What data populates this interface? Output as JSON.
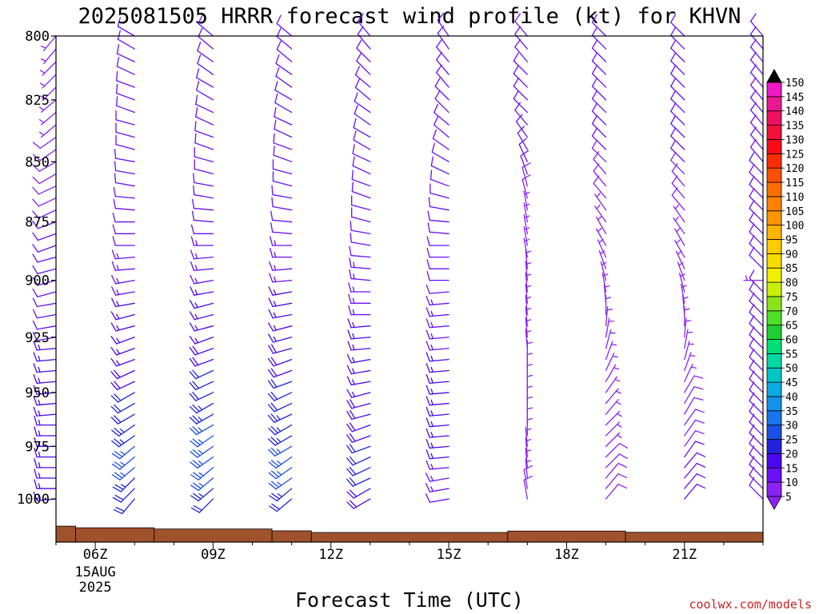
{
  "chart_data": {
    "type": "wind-barb-profile",
    "title": "2025081505 HRRR forecast wind profile (kt) for KHVN",
    "xlabel": "Forecast Time (UTC)",
    "x_ticks": [
      {
        "hour": 6,
        "label": "06Z",
        "sub1": "15AUG",
        "sub2": "2025"
      },
      {
        "hour": 9,
        "label": "09Z",
        "sub1": "",
        "sub2": ""
      },
      {
        "hour": 12,
        "label": "12Z",
        "sub1": "",
        "sub2": ""
      },
      {
        "hour": 15,
        "label": "15Z",
        "sub1": "",
        "sub2": ""
      },
      {
        "hour": 18,
        "label": "18Z",
        "sub1": "",
        "sub2": ""
      },
      {
        "hour": 21,
        "label": "21Z",
        "sub1": "",
        "sub2": ""
      }
    ],
    "xlim_hours": [
      5.0,
      23.0
    ],
    "ylim_hPa": [
      1021,
      800
    ],
    "y_ticks": [
      800,
      825,
      850,
      875,
      900,
      925,
      950,
      975,
      1000
    ],
    "y_scale": "log-pressure",
    "series_hours": [
      5,
      7,
      9,
      11,
      13,
      15,
      17,
      19,
      21,
      23
    ],
    "barb_levels": [
      1000,
      995,
      990,
      985,
      980,
      975,
      970,
      965,
      960,
      955,
      950,
      945,
      940,
      935,
      930,
      925,
      920,
      915,
      910,
      905,
      900,
      895,
      890,
      885,
      880,
      875,
      870,
      865,
      860,
      855,
      850,
      845,
      840,
      835,
      830,
      825,
      820,
      815,
      810,
      805,
      800
    ],
    "wind_profiles": [
      {
        "hour": 5,
        "dir": [
          265,
          270,
          270,
          270,
          270,
          270,
          270,
          270,
          265,
          265,
          265,
          265,
          265,
          265,
          265,
          260,
          260,
          260,
          260,
          255,
          255,
          255,
          255,
          250,
          250,
          250,
          245,
          245,
          245,
          240,
          240,
          235,
          235,
          230,
          230,
          230,
          225,
          225,
          225,
          220,
          220
        ],
        "spd": [
          15,
          15,
          15,
          15,
          15,
          15,
          15,
          15,
          15,
          15,
          15,
          15,
          15,
          15,
          15,
          12,
          12,
          12,
          12,
          12,
          12,
          10,
          10,
          10,
          10,
          10,
          10,
          8,
          8,
          8,
          8,
          8,
          8,
          6,
          6,
          6,
          6,
          6,
          5,
          5,
          5
        ]
      },
      {
        "hour": 7,
        "dir": [
          220,
          225,
          225,
          230,
          230,
          230,
          235,
          235,
          240,
          240,
          240,
          245,
          245,
          250,
          250,
          250,
          255,
          255,
          260,
          260,
          260,
          265,
          265,
          270,
          270,
          270,
          275,
          275,
          280,
          280,
          280,
          285,
          285,
          285,
          290,
          290,
          290,
          295,
          295,
          300,
          300
        ],
        "spd": [
          20,
          22,
          24,
          25,
          25,
          25,
          24,
          23,
          22,
          21,
          20,
          19,
          18,
          17,
          16,
          16,
          15,
          15,
          15,
          14,
          14,
          13,
          13,
          12,
          12,
          12,
          11,
          11,
          10,
          10,
          10,
          10,
          10,
          10,
          10,
          10,
          10,
          10,
          10,
          10,
          10
        ]
      },
      {
        "hour": 9,
        "dir": [
          225,
          230,
          230,
          230,
          235,
          235,
          235,
          240,
          240,
          240,
          245,
          245,
          245,
          250,
          250,
          250,
          255,
          255,
          255,
          260,
          260,
          265,
          265,
          270,
          270,
          275,
          275,
          280,
          280,
          285,
          285,
          290,
          290,
          295,
          295,
          300,
          300,
          305,
          305,
          310,
          310
        ],
        "spd": [
          22,
          24,
          25,
          26,
          26,
          26,
          25,
          25,
          24,
          23,
          22,
          21,
          20,
          19,
          18,
          17,
          16,
          16,
          15,
          15,
          14,
          14,
          13,
          13,
          12,
          12,
          12,
          11,
          11,
          11,
          10,
          10,
          10,
          10,
          10,
          10,
          10,
          10,
          10,
          10,
          10
        ]
      },
      {
        "hour": 11,
        "dir": [
          230,
          230,
          235,
          235,
          235,
          240,
          240,
          240,
          245,
          245,
          245,
          250,
          250,
          250,
          255,
          255,
          255,
          260,
          260,
          260,
          265,
          265,
          270,
          270,
          275,
          275,
          280,
          280,
          285,
          285,
          290,
          290,
          295,
          295,
          300,
          300,
          305,
          305,
          310,
          310,
          310
        ],
        "spd": [
          22,
          24,
          25,
          25,
          25,
          25,
          24,
          24,
          23,
          22,
          21,
          20,
          19,
          18,
          18,
          17,
          16,
          16,
          15,
          15,
          14,
          14,
          13,
          13,
          12,
          12,
          12,
          11,
          11,
          11,
          10,
          10,
          10,
          10,
          10,
          10,
          10,
          10,
          10,
          10,
          10
        ]
      },
      {
        "hour": 13,
        "dir": [
          240,
          240,
          245,
          245,
          245,
          250,
          250,
          250,
          255,
          255,
          255,
          260,
          260,
          260,
          265,
          265,
          265,
          270,
          270,
          270,
          275,
          275,
          275,
          280,
          280,
          285,
          285,
          290,
          290,
          295,
          295,
          300,
          300,
          305,
          305,
          310,
          310,
          315,
          315,
          320,
          320
        ],
        "spd": [
          18,
          19,
          20,
          20,
          20,
          20,
          19,
          19,
          18,
          18,
          17,
          17,
          16,
          16,
          15,
          15,
          15,
          14,
          14,
          14,
          13,
          13,
          12,
          12,
          12,
          11,
          11,
          11,
          10,
          10,
          10,
          10,
          10,
          10,
          10,
          10,
          10,
          10,
          10,
          10,
          10
        ]
      },
      {
        "hour": 15,
        "dir": [
          260,
          260,
          260,
          265,
          265,
          265,
          265,
          265,
          265,
          265,
          265,
          265,
          265,
          265,
          265,
          265,
          265,
          265,
          265,
          265,
          270,
          270,
          270,
          270,
          275,
          275,
          280,
          285,
          290,
          295,
          300,
          305,
          310,
          310,
          315,
          315,
          320,
          320,
          320,
          325,
          325
        ],
        "spd": [
          12,
          13,
          14,
          14,
          15,
          15,
          15,
          15,
          15,
          15,
          15,
          15,
          15,
          15,
          14,
          14,
          14,
          13,
          13,
          12,
          12,
          12,
          11,
          11,
          10,
          10,
          10,
          10,
          10,
          10,
          10,
          10,
          10,
          10,
          10,
          10,
          10,
          10,
          10,
          10,
          10
        ]
      },
      {
        "hour": 17,
        "dir": [
          350,
          350,
          355,
          355,
          355,
          355,
          0,
          0,
          0,
          0,
          0,
          0,
          0,
          0,
          355,
          355,
          355,
          355,
          355,
          355,
          355,
          355,
          350,
          350,
          350,
          350,
          350,
          345,
          345,
          340,
          335,
          330,
          325,
          320,
          315,
          315,
          315,
          315,
          320,
          320,
          320
        ],
        "spd": [
          8,
          8,
          7,
          7,
          6,
          6,
          5,
          5,
          5,
          5,
          5,
          5,
          5,
          5,
          5,
          5,
          5,
          5,
          5,
          5,
          5,
          5,
          5,
          5,
          6,
          6,
          7,
          8,
          9,
          10,
          10,
          10,
          10,
          10,
          10,
          10,
          10,
          10,
          10,
          10,
          10
        ]
      },
      {
        "hour": 19,
        "dir": [
          40,
          40,
          40,
          45,
          45,
          45,
          45,
          45,
          40,
          40,
          35,
          30,
          25,
          20,
          15,
          10,
          5,
          0,
          355,
          350,
          345,
          340,
          335,
          330,
          330,
          325,
          325,
          320,
          320,
          320,
          315,
          315,
          315,
          315,
          315,
          315,
          315,
          315,
          315,
          315,
          315
        ],
        "spd": [
          8,
          8,
          8,
          8,
          8,
          7,
          7,
          7,
          6,
          6,
          6,
          5,
          5,
          5,
          5,
          5,
          5,
          5,
          5,
          5,
          5,
          5,
          5,
          6,
          6,
          7,
          7,
          8,
          8,
          9,
          9,
          10,
          10,
          10,
          10,
          10,
          10,
          10,
          10,
          10,
          10
        ]
      },
      {
        "hour": 21,
        "dir": [
          40,
          40,
          40,
          40,
          35,
          35,
          35,
          35,
          30,
          30,
          30,
          25,
          20,
          15,
          10,
          5,
          0,
          355,
          350,
          345,
          340,
          335,
          330,
          330,
          325,
          325,
          320,
          320,
          320,
          315,
          315,
          315,
          315,
          315,
          315,
          315,
          315,
          315,
          315,
          315,
          315
        ],
        "spd": [
          10,
          10,
          10,
          10,
          10,
          9,
          9,
          9,
          8,
          8,
          8,
          7,
          7,
          6,
          6,
          6,
          5,
          5,
          5,
          5,
          5,
          5,
          6,
          6,
          7,
          7,
          8,
          8,
          9,
          9,
          10,
          10,
          10,
          10,
          10,
          10,
          10,
          10,
          10,
          10,
          10
        ]
      },
      {
        "hour": 23,
        "dir": [
          315,
          315,
          315,
          315,
          315,
          315,
          315,
          315,
          315,
          315,
          315,
          315,
          315,
          315,
          315,
          315,
          315,
          315,
          315,
          315,
          270,
          315,
          315,
          315,
          315,
          315,
          315,
          315,
          315,
          315,
          320,
          320,
          320,
          320,
          320,
          320,
          320,
          320,
          320,
          320,
          320
        ],
        "spd": [
          10,
          10,
          10,
          10,
          10,
          10,
          10,
          10,
          10,
          10,
          10,
          10,
          10,
          10,
          10,
          10,
          10,
          10,
          10,
          10,
          5,
          10,
          10,
          10,
          10,
          10,
          10,
          10,
          10,
          10,
          10,
          10,
          10,
          10,
          10,
          10,
          10,
          10,
          10,
          10,
          10
        ]
      }
    ],
    "terrain": [
      {
        "x0": 5.0,
        "x1": 5.5,
        "p": 1013.2
      },
      {
        "x0": 5.5,
        "x1": 7.5,
        "p": 1014.0
      },
      {
        "x0": 7.5,
        "x1": 10.5,
        "p": 1014.6
      },
      {
        "x0": 10.5,
        "x1": 11.5,
        "p": 1015.5
      },
      {
        "x0": 11.5,
        "x1": 16.5,
        "p": 1016.3
      },
      {
        "x0": 16.5,
        "x1": 19.5,
        "p": 1015.6
      },
      {
        "x0": 19.5,
        "x1": 23.0,
        "p": 1016.2
      }
    ],
    "terrain_color": "#a0522d",
    "colorbar": {
      "values": [
        5,
        10,
        15,
        20,
        25,
        30,
        35,
        40,
        45,
        50,
        55,
        60,
        65,
        70,
        75,
        80,
        85,
        90,
        95,
        100,
        105,
        110,
        115,
        120,
        125,
        130,
        135,
        140,
        145,
        150
      ],
      "colors": [
        "#8a22f2",
        "#6a10f6",
        "#4a08ee",
        "#2222dd",
        "#1c4fe8",
        "#1b74ee",
        "#1392ea",
        "#0aabe6",
        "#00c5c8",
        "#00d8a6",
        "#00e075",
        "#1ed030",
        "#4ce026",
        "#8ae41a",
        "#c8f00a",
        "#f0f000",
        "#f8dc00",
        "#ffcc00",
        "#ffb400",
        "#ff9600",
        "#ff8200",
        "#ff6e00",
        "#ff5000",
        "#ff2c00",
        "#f80a18",
        "#f0103a",
        "#f01060",
        "#ea1890",
        "#f018c8",
        "#f020f0"
      ],
      "low_color": "#8a22f2",
      "high_color": "#000000"
    },
    "credit": "coolwx.com/models"
  }
}
